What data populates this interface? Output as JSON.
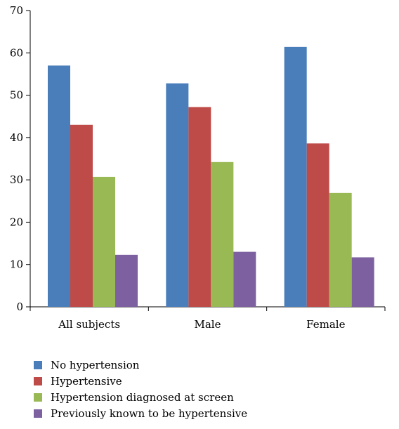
{
  "chart_data": {
    "type": "bar",
    "categories": [
      "All subjects",
      "Male",
      "Female"
    ],
    "series": [
      {
        "name": "No hypertension",
        "values": [
          57.0,
          52.8,
          61.4
        ],
        "color": "#4a7ebb"
      },
      {
        "name": "Hypertensive",
        "values": [
          43.0,
          47.2,
          38.6
        ],
        "color": "#be4b48"
      },
      {
        "name": "Hypertension diagnosed at screen",
        "values": [
          30.7,
          34.2,
          26.9
        ],
        "color": "#98b954"
      },
      {
        "name": "Previously known to be hypertensive",
        "values": [
          12.3,
          13.0,
          11.7
        ],
        "color": "#7d60a0"
      }
    ],
    "yticks": [
      "0",
      "10",
      "20",
      "30",
      "40",
      "50",
      "60",
      "70"
    ],
    "ylim": [
      0,
      70
    ],
    "title": "",
    "xlabel": "",
    "ylabel": "",
    "grid": false,
    "legend_position": "bottom-left"
  }
}
